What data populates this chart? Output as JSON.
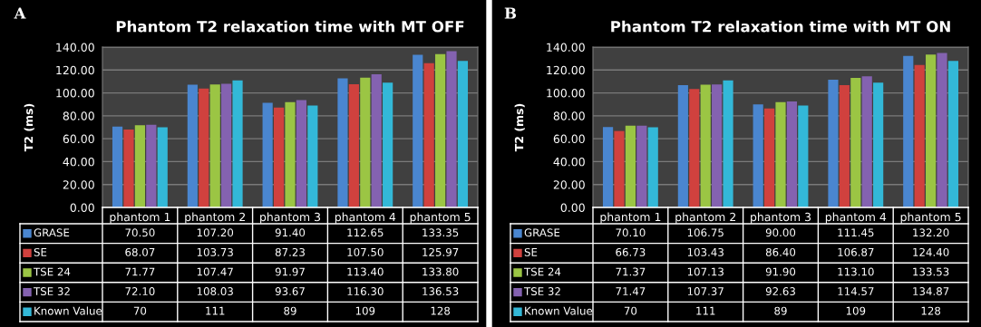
{
  "chart_data": [
    {
      "type": "bar",
      "title": "Phantom T2 relaxation time with MT OFF",
      "ylabel": "T2 (ms)",
      "annotations": [
        "A"
      ],
      "categories": [
        "phantom 1",
        "phantom 2",
        "phantom 3",
        "phantom 4",
        "phantom 5"
      ],
      "series": [
        {
          "name": "GRASE",
          "color": "#4a86d0",
          "values": [
            70.5,
            107.2,
            91.4,
            112.65,
            133.35
          ],
          "value_labels": [
            "70.50",
            "107.20",
            "91.40",
            "112.65",
            "133.35"
          ]
        },
        {
          "name": "SE",
          "color": "#d0413e",
          "values": [
            68.07,
            103.73,
            87.23,
            107.5,
            125.97
          ],
          "value_labels": [
            "68.07",
            "103.73",
            "87.23",
            "107.50",
            "125.97"
          ]
        },
        {
          "name": "TSE 24",
          "color": "#9bc544",
          "values": [
            71.77,
            107.47,
            91.97,
            113.4,
            133.8
          ],
          "value_labels": [
            "71.77",
            "107.47",
            "91.97",
            "113.40",
            "133.80"
          ]
        },
        {
          "name": "TSE 32",
          "color": "#8462b0",
          "values": [
            72.1,
            108.03,
            93.67,
            116.3,
            136.53
          ],
          "value_labels": [
            "72.10",
            "108.03",
            "93.67",
            "116.30",
            "136.53"
          ]
        },
        {
          "name": "Known Value",
          "color": "#33b8d8",
          "values": [
            70,
            111,
            89,
            109,
            128
          ],
          "value_labels": [
            "70",
            "111",
            "89",
            "109",
            "128"
          ]
        }
      ],
      "ylim": [
        0,
        140
      ],
      "yticks": [
        {
          "value": 0,
          "label": "0.00"
        },
        {
          "value": 20,
          "label": "20.00"
        },
        {
          "value": 40,
          "label": "40.00"
        },
        {
          "value": 60,
          "label": "60.00"
        },
        {
          "value": 80,
          "label": "80.00"
        },
        {
          "value": 100,
          "label": "100.00"
        },
        {
          "value": 120,
          "label": "120.00"
        },
        {
          "value": 140,
          "label": "140.00"
        }
      ],
      "grid": "y",
      "legend": "bottom"
    },
    {
      "type": "bar",
      "title": "Phantom T2 relaxation time with MT ON",
      "ylabel": "T2 (ms)",
      "annotations": [
        "B"
      ],
      "categories": [
        "phantom 1",
        "phantom 2",
        "phantom 3",
        "phantom 4",
        "phantom 5"
      ],
      "series": [
        {
          "name": "GRASE",
          "color": "#4a86d0",
          "values": [
            70.1,
            106.75,
            90.0,
            111.45,
            132.2
          ],
          "value_labels": [
            "70.10",
            "106.75",
            "90.00",
            "111.45",
            "132.20"
          ]
        },
        {
          "name": "SE",
          "color": "#d0413e",
          "values": [
            66.73,
            103.43,
            86.4,
            106.87,
            124.4
          ],
          "value_labels": [
            "66.73",
            "103.43",
            "86.40",
            "106.87",
            "124.40"
          ]
        },
        {
          "name": "TSE 24",
          "color": "#9bc544",
          "values": [
            71.37,
            107.13,
            91.9,
            113.1,
            133.53
          ],
          "value_labels": [
            "71.37",
            "107.13",
            "91.90",
            "113.10",
            "133.53"
          ]
        },
        {
          "name": "TSE 32",
          "color": "#8462b0",
          "values": [
            71.47,
            107.37,
            92.63,
            114.57,
            134.87
          ],
          "value_labels": [
            "71.47",
            "107.37",
            "92.63",
            "114.57",
            "134.87"
          ]
        },
        {
          "name": "Known Value",
          "color": "#33b8d8",
          "values": [
            70,
            111,
            89,
            109,
            128
          ],
          "value_labels": [
            "70",
            "111",
            "89",
            "109",
            "128"
          ]
        }
      ],
      "ylim": [
        0,
        140
      ],
      "yticks": [
        {
          "value": 0,
          "label": "0.00"
        },
        {
          "value": 20,
          "label": "20.00"
        },
        {
          "value": 40,
          "label": "40.00"
        },
        {
          "value": 60,
          "label": "60.00"
        },
        {
          "value": 80,
          "label": "80.00"
        },
        {
          "value": 100,
          "label": "100.00"
        },
        {
          "value": 120,
          "label": "120.00"
        },
        {
          "value": 140,
          "label": "140.00"
        }
      ],
      "grid": "y",
      "legend": "bottom"
    }
  ]
}
